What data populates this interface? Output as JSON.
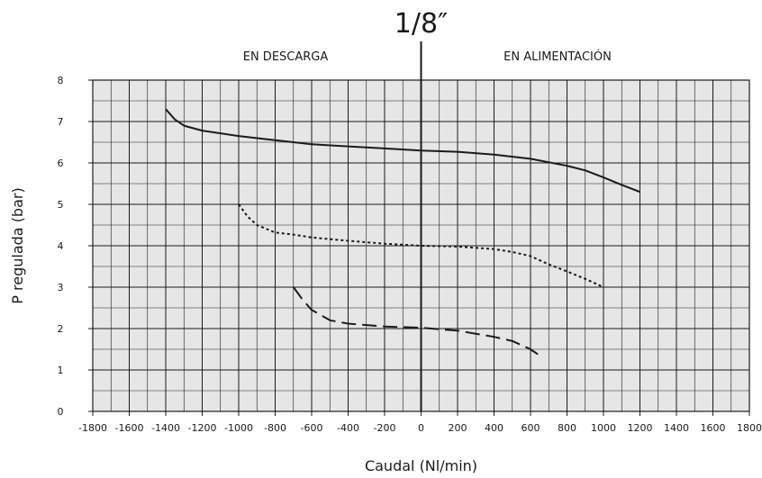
{
  "chart_data": {
    "type": "line",
    "title": "1/8″",
    "xlabel": "Caudal (Nl/min)",
    "ylabel": "P regulada (bar)",
    "xlim": [
      -1800,
      1800
    ],
    "ylim": [
      0,
      8
    ],
    "x_ticks": [
      -1800,
      -1600,
      -1400,
      -1200,
      -1000,
      -800,
      -600,
      -400,
      -200,
      0,
      200,
      400,
      600,
      800,
      1000,
      1200,
      1400,
      1600,
      1800
    ],
    "y_ticks": [
      0,
      1,
      2,
      3,
      4,
      5,
      6,
      7,
      8
    ],
    "grid": true,
    "grid_minor_x_step": 100,
    "grid_minor_y_step": 0.5,
    "plot_background": "#e6e6e6",
    "grid_color": "#1a1a1a",
    "line_color": "#1a1a1a",
    "annotations": {
      "left": "EN DESCARGA",
      "right": "EN ALIMENTACIÓN"
    },
    "series": [
      {
        "style": "solid",
        "points": [
          [
            -1400,
            7.3
          ],
          [
            -1350,
            7.05
          ],
          [
            -1300,
            6.9
          ],
          [
            -1200,
            6.78
          ],
          [
            -1000,
            6.65
          ],
          [
            -800,
            6.55
          ],
          [
            -600,
            6.45
          ],
          [
            -400,
            6.4
          ],
          [
            -200,
            6.35
          ],
          [
            0,
            6.3
          ],
          [
            200,
            6.27
          ],
          [
            400,
            6.2
          ],
          [
            600,
            6.1
          ],
          [
            800,
            5.93
          ],
          [
            900,
            5.82
          ],
          [
            1000,
            5.65
          ],
          [
            1100,
            5.47
          ],
          [
            1200,
            5.3
          ]
        ]
      },
      {
        "style": "dotted",
        "points": [
          [
            -1000,
            5.0
          ],
          [
            -950,
            4.7
          ],
          [
            -900,
            4.5
          ],
          [
            -800,
            4.32
          ],
          [
            -700,
            4.27
          ],
          [
            -600,
            4.2
          ],
          [
            -400,
            4.12
          ],
          [
            -200,
            4.05
          ],
          [
            0,
            4.0
          ],
          [
            200,
            3.98
          ],
          [
            400,
            3.92
          ],
          [
            500,
            3.85
          ],
          [
            600,
            3.75
          ],
          [
            700,
            3.55
          ],
          [
            800,
            3.38
          ],
          [
            900,
            3.2
          ],
          [
            1000,
            3.0
          ]
        ]
      },
      {
        "style": "dashed",
        "points": [
          [
            -700,
            3.0
          ],
          [
            -650,
            2.7
          ],
          [
            -600,
            2.45
          ],
          [
            -500,
            2.2
          ],
          [
            -400,
            2.12
          ],
          [
            -200,
            2.05
          ],
          [
            0,
            2.02
          ],
          [
            200,
            1.95
          ],
          [
            400,
            1.8
          ],
          [
            500,
            1.7
          ],
          [
            600,
            1.5
          ],
          [
            650,
            1.35
          ]
        ]
      }
    ]
  }
}
